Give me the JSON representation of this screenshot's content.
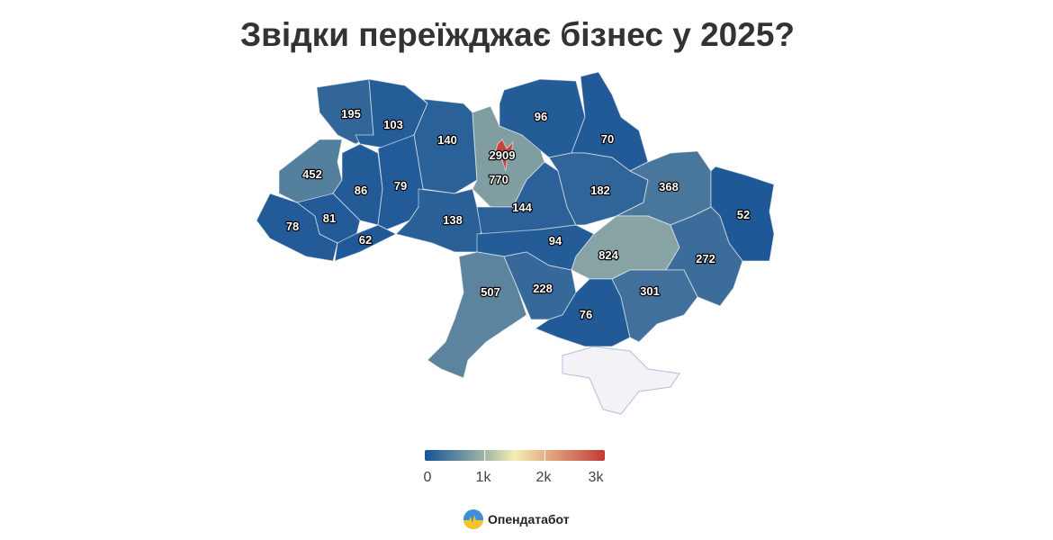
{
  "title": "Звідки переїжджає бізнес у 2025?",
  "regions": [
    {
      "value": 195
    },
    {
      "value": 103
    },
    {
      "value": 140
    },
    {
      "value": 770
    },
    {
      "value": 96
    },
    {
      "value": 70
    },
    {
      "value": 452
    },
    {
      "value": 86
    },
    {
      "value": 79
    },
    {
      "value": 78
    },
    {
      "value": 81
    },
    {
      "value": 62
    },
    {
      "value": 138
    },
    {
      "value": 144
    },
    {
      "value": 182
    },
    {
      "value": 368
    },
    {
      "value": 52
    },
    {
      "value": 94
    },
    {
      "value": 824
    },
    {
      "value": 272
    },
    {
      "value": 507
    },
    {
      "value": 228
    },
    {
      "value": 76
    },
    {
      "value": 301
    },
    {
      "value": 2909
    },
    {
      "value": null
    }
  ],
  "legend": {
    "ticks": [
      "0",
      "1k",
      "2k",
      "3k"
    ],
    "range": [
      0,
      3000
    ],
    "colors": [
      "#175396",
      "#9fb4a6",
      "#f5efb2",
      "#e6ad87",
      "#c23b36"
    ]
  },
  "no_data_color": "#f3f3f7",
  "logo": {
    "text": "Опендатабот"
  }
}
